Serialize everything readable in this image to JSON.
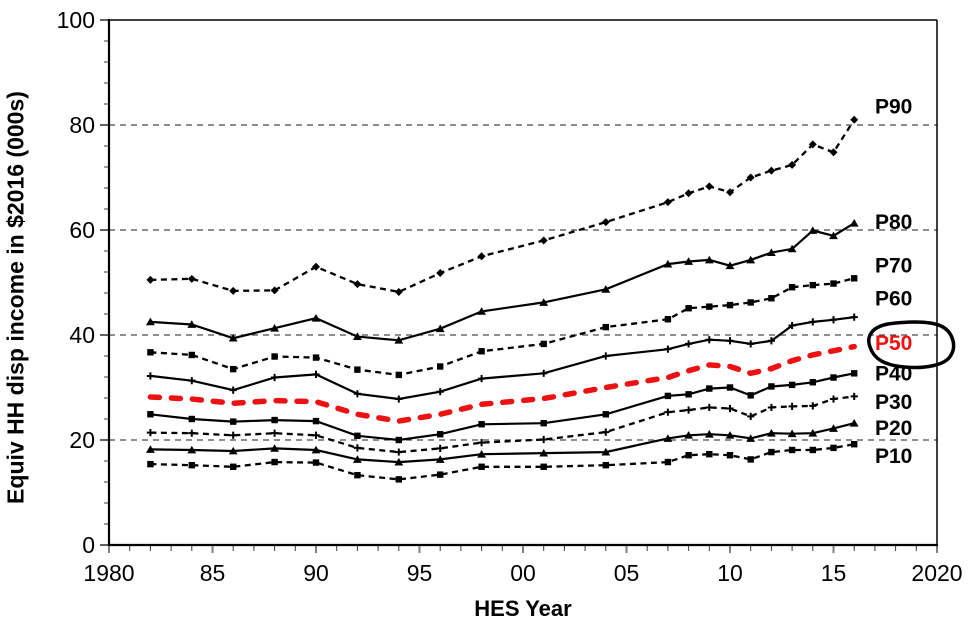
{
  "page": {
    "background": "#ffffff"
  },
  "chart_data": {
    "type": "line",
    "title": "",
    "xlabel": "HES Year",
    "ylabel": "Equiv HH disp income in $2016 (000s)",
    "xlim": [
      1980,
      2020
    ],
    "ylim": [
      0,
      100
    ],
    "grid": "horizontal-dashed",
    "gridlines_y": [
      20,
      40,
      60,
      80
    ],
    "x_major_ticks": [
      1980,
      1985,
      1990,
      1995,
      2000,
      2005,
      2010,
      2015,
      2020
    ],
    "x_tick_labels": [
      "1980",
      "85",
      "90",
      "95",
      "00",
      "05",
      "10",
      "15",
      "2020"
    ],
    "x_minor_tick_step": 1,
    "y_major_ticks": [
      0,
      20,
      40,
      60,
      80,
      100
    ],
    "y_minor_tick_step": 4,
    "legend_position": "right-inline-labels",
    "x": [
      1982,
      1984,
      1986,
      1988,
      1990,
      1992,
      1994,
      1996,
      1998,
      2001,
      2004,
      2007,
      2008,
      2009,
      2010,
      2011,
      2012,
      2013,
      2014,
      2015,
      2016
    ],
    "series": [
      {
        "name": "P90",
        "label": "P90",
        "color": "#000000",
        "style": "dashed",
        "marker": "diamond",
        "label_y": 83.5,
        "values": [
          50.5,
          50.7,
          48.4,
          48.5,
          53.0,
          49.7,
          48.2,
          51.8,
          55.0,
          58.0,
          61.5,
          65.3,
          67.0,
          68.3,
          67.2,
          70.0,
          71.3,
          72.4,
          76.3,
          74.8,
          81.0
        ]
      },
      {
        "name": "P80",
        "label": "P80",
        "color": "#000000",
        "style": "solid",
        "marker": "triangle",
        "label_y": 61.5,
        "values": [
          42.5,
          42.0,
          39.4,
          41.3,
          43.2,
          39.7,
          39.0,
          41.2,
          44.5,
          46.2,
          48.7,
          53.5,
          54.0,
          54.3,
          53.2,
          54.3,
          55.7,
          56.4,
          59.9,
          58.9,
          61.3
        ]
      },
      {
        "name": "P70",
        "label": "P70",
        "color": "#000000",
        "style": "dashed",
        "marker": "square",
        "label_y": 53.2,
        "values": [
          36.7,
          36.2,
          33.5,
          35.9,
          35.7,
          33.4,
          32.4,
          34.0,
          36.9,
          38.3,
          41.5,
          43.0,
          45.1,
          45.4,
          45.7,
          46.2,
          47.0,
          49.1,
          49.5,
          49.8,
          50.8
        ]
      },
      {
        "name": "P60",
        "label": "P60",
        "color": "#000000",
        "style": "solid",
        "marker": "plus",
        "label_y": 47.0,
        "values": [
          32.2,
          31.3,
          29.5,
          31.9,
          32.5,
          28.8,
          27.8,
          29.2,
          31.7,
          32.7,
          36.0,
          37.3,
          38.3,
          39.1,
          38.9,
          38.3,
          38.9,
          41.8,
          42.5,
          42.9,
          43.4
        ]
      },
      {
        "name": "P50",
        "label": "P50",
        "color": "#ee1111",
        "style": "dashed-bold",
        "marker": "none",
        "label_y": 38.5,
        "values": [
          28.2,
          27.8,
          27.0,
          27.5,
          27.3,
          24.9,
          23.6,
          24.9,
          26.8,
          27.9,
          30.0,
          31.9,
          33.2,
          34.3,
          34.0,
          32.7,
          33.6,
          35.1,
          36.2,
          37.0,
          37.8
        ]
      },
      {
        "name": "P40",
        "label": "P40",
        "color": "#000000",
        "style": "solid",
        "marker": "square",
        "label_y": 32.7,
        "values": [
          24.9,
          24.0,
          23.5,
          23.8,
          23.6,
          20.8,
          20.0,
          21.1,
          23.0,
          23.2,
          24.9,
          28.4,
          28.7,
          29.8,
          30.0,
          28.5,
          30.2,
          30.5,
          31.0,
          31.9,
          32.7
        ]
      },
      {
        "name": "P30",
        "label": "P30",
        "color": "#000000",
        "style": "dashed",
        "marker": "plus",
        "label_y": 27.2,
        "values": [
          21.4,
          21.3,
          20.9,
          21.3,
          20.9,
          18.5,
          17.7,
          18.4,
          19.5,
          20.1,
          21.5,
          25.3,
          25.7,
          26.2,
          26.0,
          24.5,
          26.2,
          26.4,
          26.5,
          27.8,
          28.3
        ]
      },
      {
        "name": "P20",
        "label": "P20",
        "color": "#000000",
        "style": "solid",
        "marker": "triangle",
        "label_y": 22.3,
        "values": [
          18.2,
          18.1,
          17.9,
          18.4,
          18.1,
          16.3,
          15.8,
          16.3,
          17.3,
          17.5,
          17.7,
          20.3,
          20.9,
          21.1,
          20.9,
          20.3,
          21.3,
          21.2,
          21.3,
          22.2,
          23.2
        ]
      },
      {
        "name": "P10",
        "label": "P10",
        "color": "#000000",
        "style": "dashed",
        "marker": "square",
        "label_y": 17.0,
        "values": [
          15.4,
          15.2,
          14.9,
          15.8,
          15.7,
          13.3,
          12.5,
          13.4,
          14.9,
          14.9,
          15.2,
          15.8,
          17.1,
          17.3,
          17.1,
          16.3,
          17.7,
          18.1,
          18.1,
          18.5,
          19.2
        ]
      }
    ],
    "annotation": {
      "type": "hand-drawn-circle",
      "target": "P50",
      "color": "#000000"
    }
  }
}
